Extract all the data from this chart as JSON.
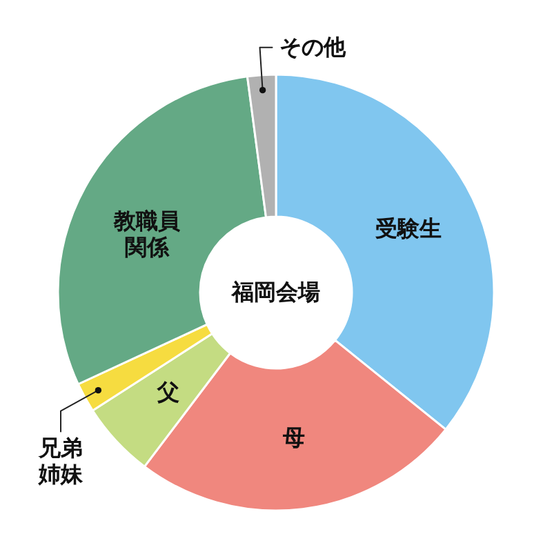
{
  "chart_data": {
    "type": "donut",
    "title": "福岡会場",
    "categories": [
      "受験生",
      "母",
      "父",
      "兄弟姉妹",
      "教職員関係",
      "その他"
    ],
    "values": [
      35.8,
      24.5,
      5.6,
      2.2,
      29.8,
      2.1
    ],
    "colors": [
      "#80c6ef",
      "#f0877e",
      "#c4dc82",
      "#f6dc40",
      "#64a985",
      "#b1b1b1"
    ]
  }
}
